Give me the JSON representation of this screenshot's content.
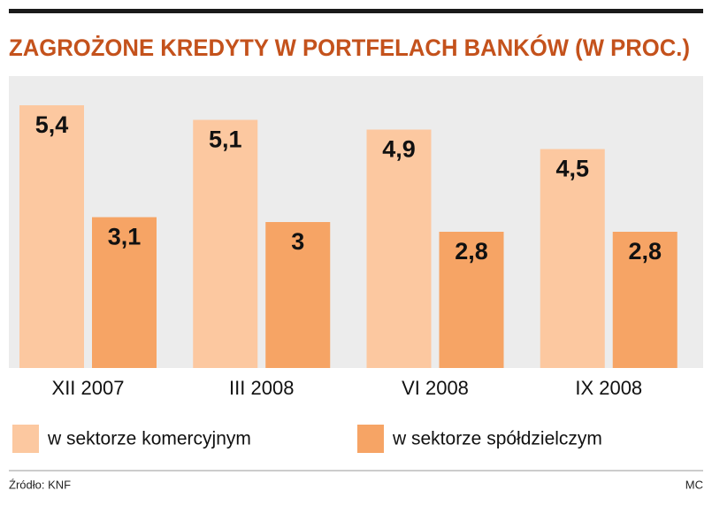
{
  "chart_data": {
    "type": "bar",
    "title": "ZAGROŻONE KREDYTY W PORTFELACH BANKÓW (W PROC.)",
    "categories": [
      "XII 2007",
      "III 2008",
      "VI 2008",
      "IX 2008"
    ],
    "series": [
      {
        "name": "w sektorze komercyjnym",
        "color": "#fcc8a0",
        "values": [
          5.4,
          5.1,
          4.9,
          4.5
        ],
        "value_labels": [
          "5,4",
          "5,1",
          "4,9",
          "4,5"
        ]
      },
      {
        "name": "w sektorze spółdzielczym",
        "color": "#f6a465",
        "values": [
          3.1,
          3,
          2.8,
          2.8
        ],
        "value_labels": [
          "3,1",
          "3",
          "2,8",
          "2,8"
        ]
      }
    ],
    "ylim": [
      0,
      6
    ],
    "source": "Źródło: KNF",
    "credit": "MC"
  }
}
